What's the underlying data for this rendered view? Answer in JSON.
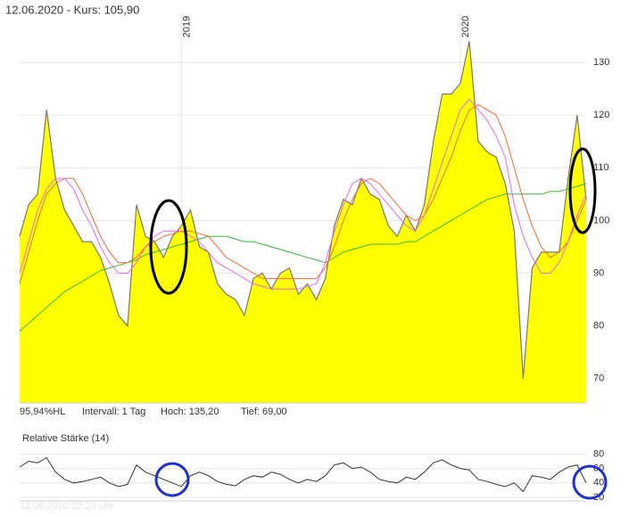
{
  "chart_data": [
    {
      "type": "area",
      "title": "12.06.2020  - Kurs: 105,90",
      "annotations": [
        "95,94%HL",
        "Intervall: 1 Tag",
        "Hoch:  135,20",
        "Tief:  69,00"
      ],
      "categories": [
        null,
        null,
        null,
        null,
        null,
        null,
        null,
        null,
        null,
        null,
        null,
        null,
        null,
        null,
        null,
        null,
        null,
        null,
        "2019",
        null,
        null,
        null,
        null,
        null,
        null,
        null,
        null,
        null,
        null,
        null,
        null,
        null,
        null,
        null,
        null,
        null,
        null,
        null,
        null,
        null,
        null,
        null,
        null,
        null,
        null,
        null,
        null,
        null,
        null,
        "2020",
        null,
        null,
        null,
        null,
        null,
        null,
        null,
        null,
        null,
        null,
        null,
        null,
        null,
        null
      ],
      "series": [
        {
          "color": "#ffff00",
          "line_color": "#777777",
          "fill": true,
          "values": [
            97,
            103,
            105,
            121,
            108,
            102,
            99,
            96,
            96,
            93,
            88,
            82,
            80,
            103,
            97,
            96,
            93,
            97,
            99,
            102,
            95,
            94,
            88,
            86,
            85,
            82,
            89,
            90,
            87,
            90,
            91,
            86,
            88,
            85,
            89,
            99,
            104,
            103,
            108,
            105,
            104,
            99,
            97,
            101,
            98,
            103,
            115,
            124,
            124,
            126,
            134,
            115,
            113,
            112,
            107,
            98,
            70,
            91,
            94,
            94,
            94,
            108,
            120,
            104
          ]
        },
        {
          "color": "#33bb33",
          "values": [
            79,
            80.5,
            82,
            83.5,
            85,
            86.5,
            87.5,
            88.5,
            89.5,
            90.5,
            91,
            91.5,
            92,
            92.5,
            93.5,
            94,
            94.5,
            95,
            95.5,
            96,
            96.5,
            97,
            97,
            97,
            96.5,
            96,
            96,
            95.5,
            95,
            94.5,
            94,
            93.5,
            93,
            92.5,
            92,
            93,
            94,
            94.5,
            95,
            95.5,
            95.5,
            95.5,
            95.5,
            96,
            96,
            97,
            98,
            99,
            100,
            101,
            102,
            103,
            104,
            104.5,
            105,
            105,
            105,
            105,
            105,
            105.5,
            105.5,
            106,
            106.5,
            107
          ]
        },
        {
          "color": "#ff6633",
          "values": [
            88,
            94,
            100,
            105,
            107,
            108,
            108,
            105,
            101,
            97,
            94,
            92,
            92,
            93,
            95,
            96,
            97,
            97.5,
            98,
            98,
            97.5,
            97,
            95,
            93,
            92,
            91,
            90,
            89,
            89,
            89,
            89,
            89,
            89,
            89,
            91,
            95,
            100,
            104,
            107,
            108,
            107,
            105,
            103,
            101,
            100,
            101,
            104,
            108,
            112,
            117,
            121,
            122,
            121,
            120,
            116,
            110,
            104,
            99,
            95,
            93,
            94,
            96,
            100,
            104
          ]
        },
        {
          "color": "#ee66ee",
          "values": [
            90,
            96,
            102,
            106,
            108,
            108,
            106,
            102,
            99,
            95,
            92,
            90,
            90,
            92,
            95,
            97,
            98,
            98,
            98,
            97,
            96,
            94,
            92,
            91,
            90,
            89,
            88,
            87.5,
            87,
            87,
            87,
            87,
            87.5,
            88,
            92,
            98,
            103,
            107,
            108,
            107,
            105,
            103,
            101,
            99,
            98,
            101,
            106,
            111,
            116,
            121,
            123,
            121,
            119,
            116,
            112,
            103,
            97,
            93,
            90,
            90,
            92,
            96,
            101,
            105
          ]
        }
      ],
      "ylim": [
        65.4,
        139.3
      ],
      "yticks": [
        70,
        80,
        90,
        100,
        110,
        120,
        130
      ],
      "grid": true
    },
    {
      "type": "line",
      "title": "Relative Stärke (14)",
      "footer": "12.06.2020 22:20 Uhr",
      "series": [
        {
          "color": "#333333",
          "values": [
            62,
            70,
            68,
            75,
            55,
            45,
            40,
            42,
            45,
            48,
            40,
            35,
            38,
            65,
            55,
            50,
            45,
            40,
            35,
            50,
            55,
            50,
            42,
            38,
            36,
            45,
            50,
            48,
            55,
            52,
            45,
            40,
            45,
            42,
            50,
            65,
            68,
            60,
            62,
            55,
            45,
            42,
            40,
            48,
            45,
            55,
            68,
            72,
            65,
            60,
            58,
            45,
            42,
            38,
            35,
            40,
            28,
            50,
            48,
            45,
            55,
            62,
            65,
            40
          ]
        }
      ],
      "ylim": [
        15,
        88
      ],
      "yticks": [
        20,
        40,
        60,
        80
      ],
      "grid": true
    }
  ]
}
